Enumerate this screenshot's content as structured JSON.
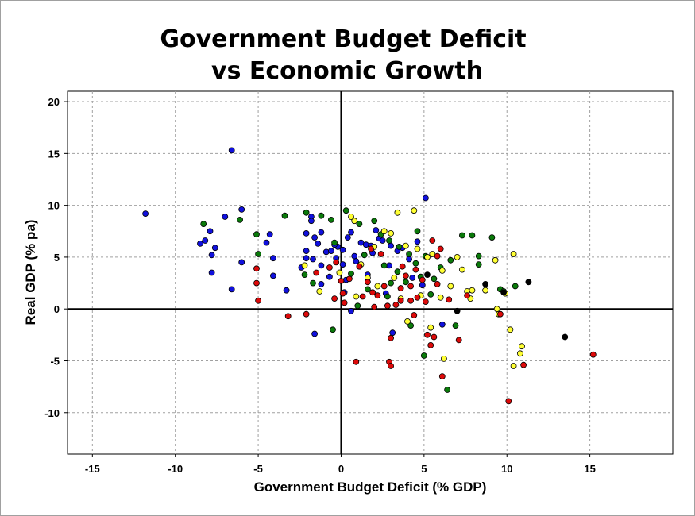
{
  "chart_data": {
    "type": "scatter",
    "title_lines": [
      "Government Budget Deficit",
      "vs Economic Growth"
    ],
    "xlabel": "Government Budget Deficit (% GDP)",
    "ylabel": "Real GDP (% pa)",
    "xlim": [
      -16.5,
      20
    ],
    "ylim": [
      -14,
      21
    ],
    "x_ticks": [
      -15,
      -10,
      -5,
      0,
      5,
      10,
      15
    ],
    "y_ticks": [
      -10,
      -5,
      0,
      5,
      10,
      15,
      20
    ],
    "grid": true,
    "legend": "none",
    "series": [
      {
        "name": "blue",
        "color": "#1010dd",
        "points": [
          [
            -11.8,
            9.2
          ],
          [
            -6.6,
            15.3
          ],
          [
            -6.0,
            9.6
          ],
          [
            -7.0,
            8.9
          ],
          [
            -8.2,
            6.6
          ],
          [
            -8.5,
            6.3
          ],
          [
            -7.9,
            7.5
          ],
          [
            -7.6,
            5.9
          ],
          [
            -7.8,
            5.2
          ],
          [
            -7.8,
            3.5
          ],
          [
            -6.6,
            1.9
          ],
          [
            -6.0,
            4.5
          ],
          [
            -4.5,
            6.4
          ],
          [
            -4.3,
            7.2
          ],
          [
            -4.1,
            4.9
          ],
          [
            -4.1,
            3.2
          ],
          [
            -3.3,
            1.8
          ],
          [
            -2.1,
            7.3
          ],
          [
            -2.1,
            5.6
          ],
          [
            -2.1,
            4.9
          ],
          [
            -1.8,
            8.9
          ],
          [
            -1.8,
            8.5
          ],
          [
            -1.6,
            6.9
          ],
          [
            -1.4,
            6.3
          ],
          [
            -1.2,
            7.4
          ],
          [
            -1.7,
            4.8
          ],
          [
            -1.2,
            4.2
          ],
          [
            -0.9,
            5.5
          ],
          [
            -0.6,
            5.6
          ],
          [
            -0.3,
            4.9
          ],
          [
            -0.2,
            6.0
          ],
          [
            0.1,
            5.7
          ],
          [
            0.1,
            4.3
          ],
          [
            0.4,
            6.9
          ],
          [
            0.6,
            7.4
          ],
          [
            0.8,
            5.1
          ],
          [
            1.2,
            6.4
          ],
          [
            1.5,
            6.2
          ],
          [
            1.8,
            6.1
          ],
          [
            2.1,
            7.6
          ],
          [
            2.3,
            6.8
          ],
          [
            2.5,
            6.6
          ],
          [
            3.0,
            6.1
          ],
          [
            3.4,
            5.6
          ],
          [
            3.7,
            5.9
          ],
          [
            4.1,
            4.8
          ],
          [
            4.6,
            6.5
          ],
          [
            5.1,
            10.7
          ],
          [
            -1.6,
            -2.4
          ],
          [
            0.6,
            -0.2
          ],
          [
            3.1,
            -2.3
          ],
          [
            6.1,
            -1.5
          ],
          [
            4.9,
            2.3
          ],
          [
            2.7,
            1.5
          ],
          [
            1.6,
            3.3
          ],
          [
            0.9,
            4.6
          ],
          [
            -0.7,
            3.1
          ],
          [
            -1.2,
            2.4
          ],
          [
            0.3,
            2.8
          ],
          [
            2.9,
            4.2
          ],
          [
            3.6,
            2.0
          ],
          [
            4.3,
            3.0
          ],
          [
            1.9,
            5.4
          ],
          [
            -0.4,
            6.2
          ],
          [
            -2.4,
            4.0
          ],
          [
            0.2,
            1.6
          ]
        ]
      },
      {
        "name": "green",
        "color": "#0a7a0a",
        "points": [
          [
            -8.3,
            8.2
          ],
          [
            -6.1,
            8.6
          ],
          [
            -5.1,
            7.2
          ],
          [
            -3.4,
            9.0
          ],
          [
            -2.1,
            9.3
          ],
          [
            -1.2,
            9.0
          ],
          [
            -0.6,
            8.6
          ],
          [
            -0.4,
            6.4
          ],
          [
            0.3,
            9.5
          ],
          [
            1.1,
            8.2
          ],
          [
            2.0,
            8.5
          ],
          [
            2.4,
            7.2
          ],
          [
            2.9,
            6.6
          ],
          [
            3.5,
            6.0
          ],
          [
            4.1,
            5.3
          ],
          [
            4.6,
            7.5
          ],
          [
            5.1,
            5.1
          ],
          [
            5.6,
            2.9
          ],
          [
            6.6,
            4.7
          ],
          [
            7.3,
            7.1
          ],
          [
            7.9,
            7.1
          ],
          [
            8.3,
            4.3
          ],
          [
            8.3,
            5.1
          ],
          [
            9.1,
            6.9
          ],
          [
            9.6,
            1.9
          ],
          [
            9.8,
            1.7
          ],
          [
            10.5,
            2.2
          ],
          [
            6.9,
            -1.6
          ],
          [
            5.0,
            -4.5
          ],
          [
            6.4,
            -7.8
          ],
          [
            4.2,
            -1.6
          ],
          [
            2.8,
            1.2
          ],
          [
            1.6,
            1.9
          ],
          [
            3.4,
            3.6
          ],
          [
            4.5,
            4.4
          ],
          [
            -0.5,
            -2.0
          ],
          [
            -1.7,
            2.5
          ],
          [
            0.6,
            3.4
          ],
          [
            1.4,
            5.2
          ],
          [
            2.6,
            4.2
          ],
          [
            3.9,
            2.6
          ],
          [
            5.4,
            1.4
          ],
          [
            -2.2,
            3.3
          ],
          [
            -5.0,
            5.3
          ],
          [
            1.0,
            0.3
          ],
          [
            3.0,
            2.5
          ],
          [
            4.8,
            3.1
          ],
          [
            6.0,
            4.0
          ]
        ]
      },
      {
        "name": "yellow",
        "color": "#ffff33",
        "points": [
          [
            0.6,
            8.9
          ],
          [
            0.8,
            8.5
          ],
          [
            3.4,
            9.3
          ],
          [
            4.4,
            9.5
          ],
          [
            2.6,
            7.5
          ],
          [
            3.0,
            7.3
          ],
          [
            3.9,
            6.1
          ],
          [
            4.6,
            5.8
          ],
          [
            5.2,
            5.0
          ],
          [
            5.5,
            5.3
          ],
          [
            6.1,
            3.7
          ],
          [
            7.0,
            5.0
          ],
          [
            7.3,
            3.8
          ],
          [
            7.6,
            1.7
          ],
          [
            7.8,
            1.0
          ],
          [
            7.9,
            1.8
          ],
          [
            8.7,
            1.8
          ],
          [
            9.3,
            4.7
          ],
          [
            9.4,
            0.0
          ],
          [
            9.5,
            -0.5
          ],
          [
            9.9,
            1.5
          ],
          [
            10.2,
            -2.0
          ],
          [
            10.4,
            5.3
          ],
          [
            10.4,
            -5.5
          ],
          [
            10.8,
            -4.3
          ],
          [
            10.9,
            -3.6
          ],
          [
            6.2,
            -4.8
          ],
          [
            5.4,
            -1.8
          ],
          [
            6.0,
            1.1
          ],
          [
            4.8,
            1.3
          ],
          [
            3.6,
            1.0
          ],
          [
            2.2,
            2.2
          ],
          [
            1.6,
            3.0
          ],
          [
            1.2,
            4.3
          ],
          [
            0.9,
            1.2
          ],
          [
            -0.1,
            3.5
          ],
          [
            -1.3,
            1.7
          ],
          [
            -2.2,
            4.2
          ],
          [
            2.0,
            6.0
          ],
          [
            3.2,
            3.0
          ],
          [
            4.0,
            -1.2
          ],
          [
            6.6,
            2.2
          ]
        ]
      },
      {
        "name": "red",
        "color": "#dd0a0a",
        "points": [
          [
            -5.1,
            2.5
          ],
          [
            -5.0,
            0.8
          ],
          [
            -5.1,
            3.9
          ],
          [
            -3.2,
            -0.7
          ],
          [
            -2.1,
            -0.5
          ],
          [
            -1.5,
            3.5
          ],
          [
            -0.7,
            4.0
          ],
          [
            -0.3,
            4.5
          ],
          [
            0.0,
            2.7
          ],
          [
            0.1,
            1.5
          ],
          [
            0.2,
            0.6
          ],
          [
            0.9,
            -5.1
          ],
          [
            1.3,
            1.2
          ],
          [
            1.6,
            2.6
          ],
          [
            1.9,
            1.6
          ],
          [
            2.2,
            1.3
          ],
          [
            2.6,
            2.2
          ],
          [
            2.8,
            0.3
          ],
          [
            2.9,
            -5.1
          ],
          [
            3.0,
            -5.5
          ],
          [
            3.0,
            -2.8
          ],
          [
            3.3,
            0.4
          ],
          [
            3.6,
            2.0
          ],
          [
            3.6,
            0.8
          ],
          [
            3.9,
            3.2
          ],
          [
            4.2,
            0.8
          ],
          [
            4.5,
            3.8
          ],
          [
            4.6,
            1.1
          ],
          [
            4.9,
            2.8
          ],
          [
            5.1,
            0.7
          ],
          [
            5.2,
            -2.5
          ],
          [
            5.4,
            -3.5
          ],
          [
            5.6,
            -2.7
          ],
          [
            5.8,
            5.1
          ],
          [
            5.8,
            2.4
          ],
          [
            6.1,
            -6.5
          ],
          [
            6.5,
            0.9
          ],
          [
            7.1,
            -3.0
          ],
          [
            7.6,
            1.3
          ],
          [
            9.6,
            -0.5
          ],
          [
            10.1,
            -8.9
          ],
          [
            11.0,
            -5.4
          ],
          [
            15.2,
            -4.4
          ],
          [
            4.4,
            -0.6
          ],
          [
            3.7,
            4.1
          ],
          [
            2.4,
            5.3
          ],
          [
            1.8,
            5.8
          ],
          [
            1.1,
            4.1
          ],
          [
            5.5,
            6.6
          ],
          [
            6.0,
            5.8
          ],
          [
            4.2,
            2.2
          ],
          [
            0.5,
            2.9
          ],
          [
            -0.4,
            1.0
          ],
          [
            2.0,
            0.2
          ]
        ]
      },
      {
        "name": "black",
        "color": "#000000",
        "points": [
          [
            8.7,
            2.4
          ],
          [
            9.8,
            1.6
          ],
          [
            11.3,
            2.6
          ],
          [
            13.5,
            -2.7
          ],
          [
            7.0,
            -0.2
          ],
          [
            5.2,
            3.3
          ]
        ]
      }
    ]
  }
}
